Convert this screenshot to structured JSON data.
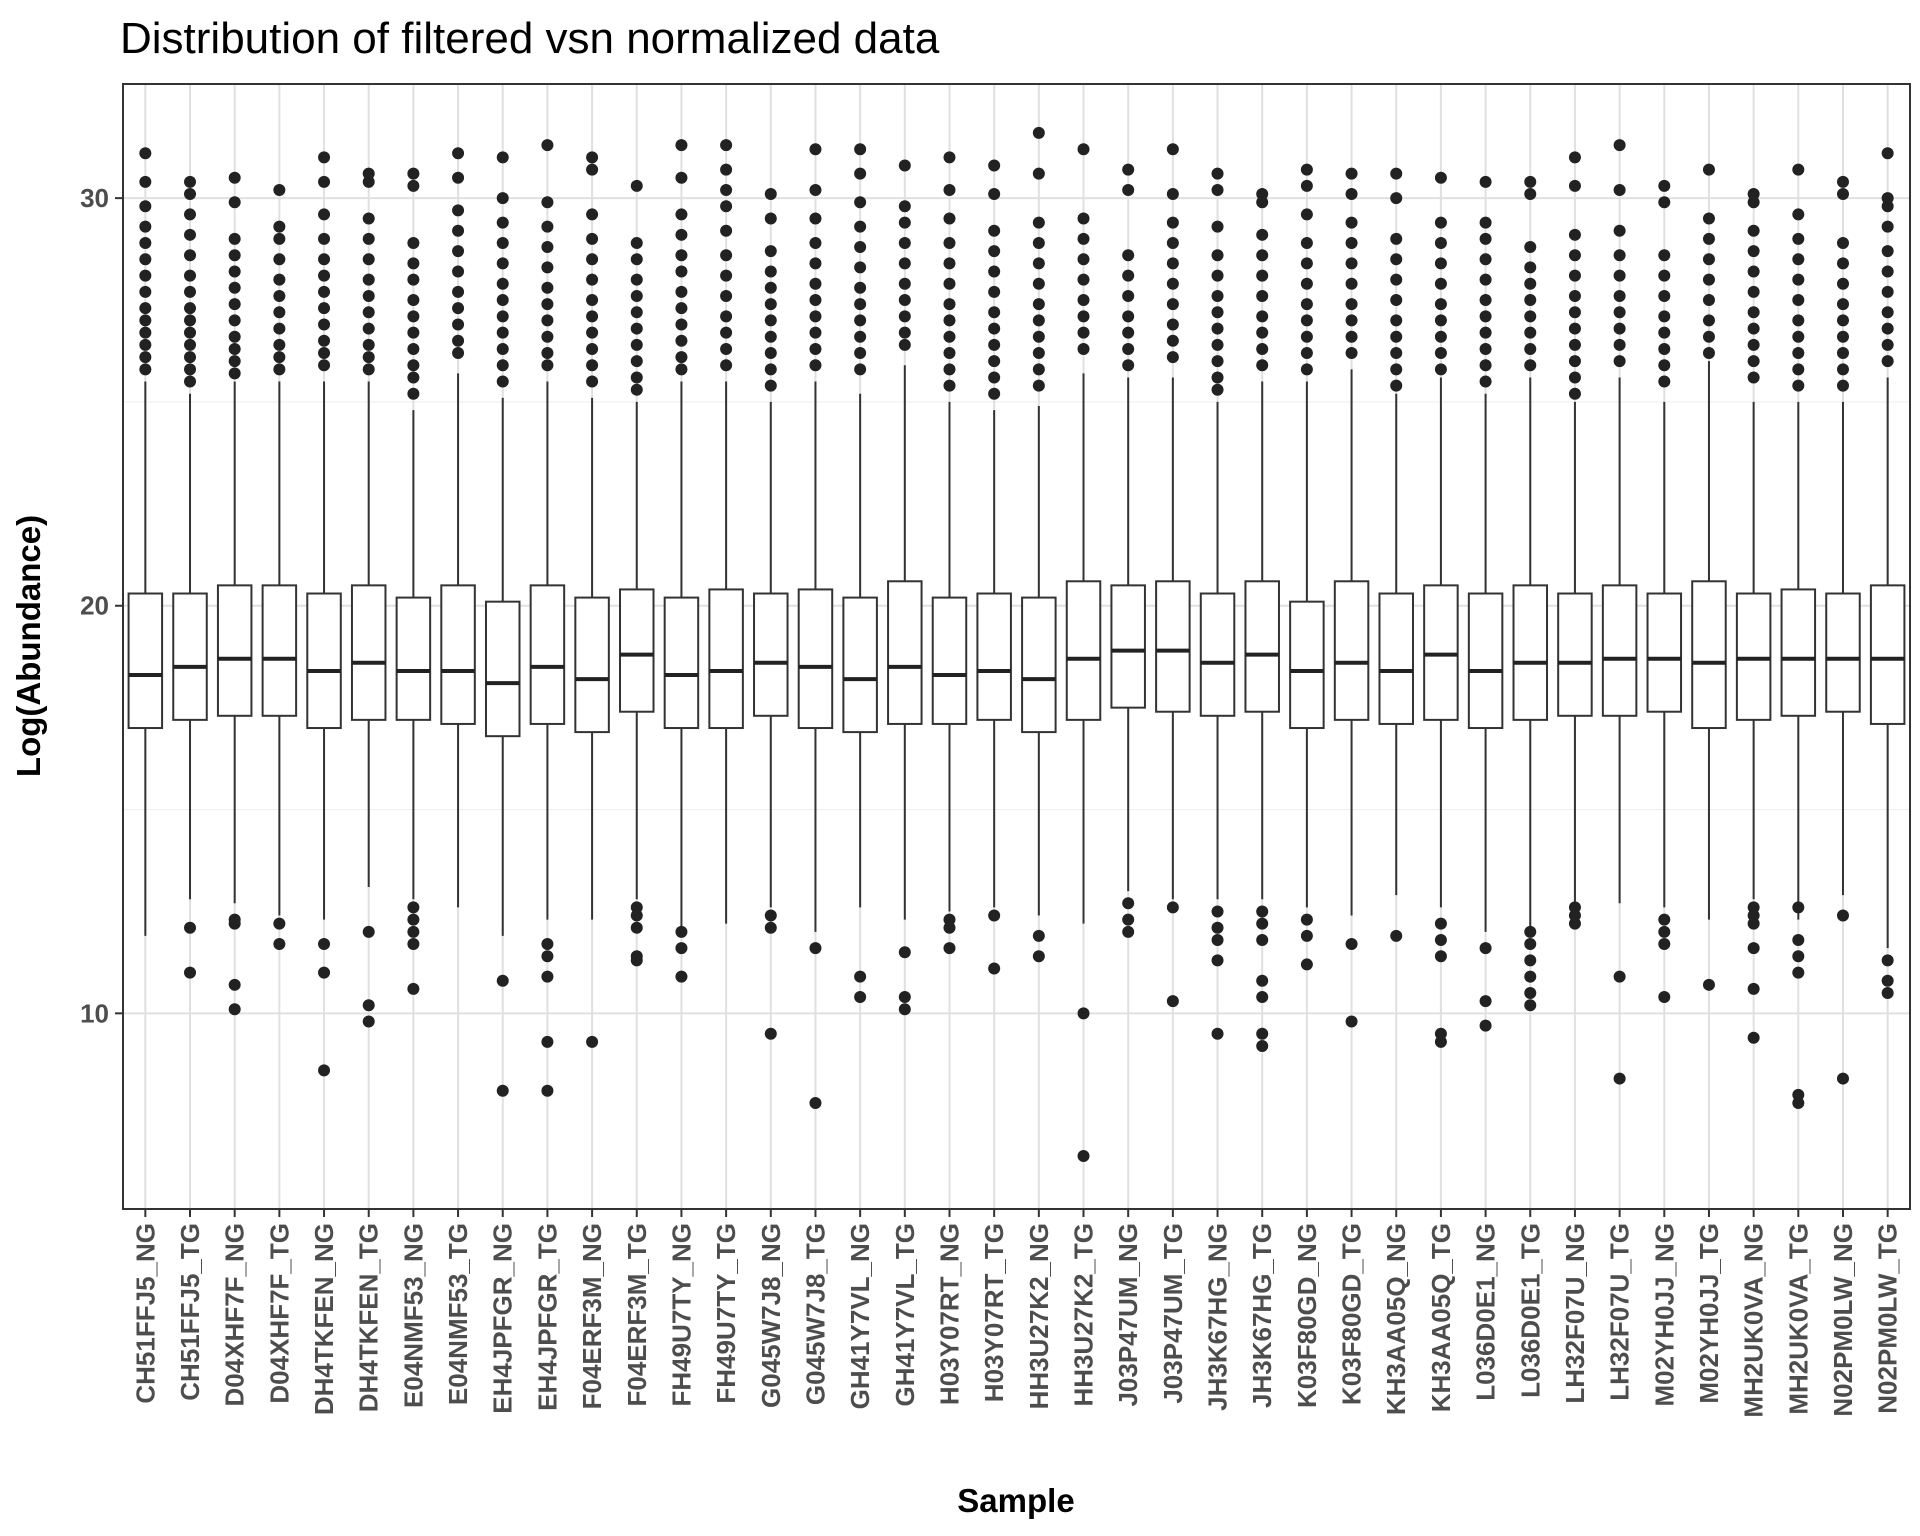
{
  "chart_data": {
    "type": "box",
    "title": "Distribution of filtered vsn normalized data",
    "xlabel": "Sample",
    "ylabel": "Log(Abundance)",
    "ylim": [
      5.2,
      32.8
    ],
    "yticks": [
      10,
      20,
      30
    ],
    "grid": true,
    "legend": "none",
    "colors": {
      "box_fill": "#ffffff",
      "box_line": "#333333",
      "point": "#222222",
      "grid_major": "#e0e0e0",
      "grid_minor": "#efefef",
      "panel_border": "#333333"
    },
    "categories": [
      "CH51FFJ5_NG",
      "CH51FFJ5_TG",
      "D04XHF7F_NG",
      "D04XHF7F_TG",
      "DH4TKFEN_NG",
      "DH4TKFEN_TG",
      "E04NMF53_NG",
      "E04NMF53_TG",
      "EH4JPFGR_NG",
      "EH4JPFGR_TG",
      "F04ERF3M_NG",
      "F04ERF3M_TG",
      "FH49U7TY_NG",
      "FH49U7TY_TG",
      "G045W7J8_NG",
      "G045W7J8_TG",
      "GH41Y7VL_NG",
      "GH41Y7VL_TG",
      "H03Y07RT_NG",
      "H03Y07RT_TG",
      "HH3U27K2_NG",
      "HH3U27K2_TG",
      "J03P47UM_NG",
      "J03P47UM_TG",
      "JH3K67HG_NG",
      "JH3K67HG_TG",
      "K03F80GD_NG",
      "K03F80GD_TG",
      "KH3AA05Q_NG",
      "KH3AA05Q_TG",
      "L036D0E1_NG",
      "L036D0E1_TG",
      "LH32F07U_NG",
      "LH32F07U_TG",
      "M02YH0JJ_NG",
      "M02YH0JJ_TG",
      "MH2UK0VA_NG",
      "MH2UK0VA_TG",
      "N02PM0LW_NG",
      "N02PM0LW_TG"
    ],
    "boxes": [
      {
        "lower_whisker": 11.9,
        "q1": 17.0,
        "median": 18.3,
        "q3": 20.3,
        "upper_whisker": 25.5
      },
      {
        "lower_whisker": 12.8,
        "q1": 17.2,
        "median": 18.5,
        "q3": 20.3,
        "upper_whisker": 25.2
      },
      {
        "lower_whisker": 12.7,
        "q1": 17.3,
        "median": 18.7,
        "q3": 20.5,
        "upper_whisker": 25.5
      },
      {
        "lower_whisker": 12.4,
        "q1": 17.3,
        "median": 18.7,
        "q3": 20.5,
        "upper_whisker": 25.5
      },
      {
        "lower_whisker": 12.3,
        "q1": 17.0,
        "median": 18.4,
        "q3": 20.3,
        "upper_whisker": 25.5
      },
      {
        "lower_whisker": 13.1,
        "q1": 17.2,
        "median": 18.6,
        "q3": 20.5,
        "upper_whisker": 25.5
      },
      {
        "lower_whisker": 12.8,
        "q1": 17.2,
        "median": 18.4,
        "q3": 20.2,
        "upper_whisker": 24.8
      },
      {
        "lower_whisker": 12.6,
        "q1": 17.1,
        "median": 18.4,
        "q3": 20.5,
        "upper_whisker": 25.7
      },
      {
        "lower_whisker": 11.9,
        "q1": 16.8,
        "median": 18.1,
        "q3": 20.1,
        "upper_whisker": 25.1
      },
      {
        "lower_whisker": 12.3,
        "q1": 17.1,
        "median": 18.5,
        "q3": 20.5,
        "upper_whisker": 25.5
      },
      {
        "lower_whisker": 12.3,
        "q1": 16.9,
        "median": 18.2,
        "q3": 20.2,
        "upper_whisker": 25.1
      },
      {
        "lower_whisker": 12.8,
        "q1": 17.4,
        "median": 18.8,
        "q3": 20.4,
        "upper_whisker": 25.0
      },
      {
        "lower_whisker": 12.1,
        "q1": 17.0,
        "median": 18.3,
        "q3": 20.2,
        "upper_whisker": 25.5
      },
      {
        "lower_whisker": 12.2,
        "q1": 17.0,
        "median": 18.4,
        "q3": 20.4,
        "upper_whisker": 25.5
      },
      {
        "lower_whisker": 12.6,
        "q1": 17.3,
        "median": 18.6,
        "q3": 20.3,
        "upper_whisker": 25.0
      },
      {
        "lower_whisker": 12.0,
        "q1": 17.0,
        "median": 18.5,
        "q3": 20.4,
        "upper_whisker": 25.5
      },
      {
        "lower_whisker": 12.6,
        "q1": 16.9,
        "median": 18.2,
        "q3": 20.2,
        "upper_whisker": 25.2
      },
      {
        "lower_whisker": 12.3,
        "q1": 17.1,
        "median": 18.5,
        "q3": 20.6,
        "upper_whisker": 25.9
      },
      {
        "lower_whisker": 12.5,
        "q1": 17.1,
        "median": 18.3,
        "q3": 20.2,
        "upper_whisker": 25.0
      },
      {
        "lower_whisker": 12.6,
        "q1": 17.2,
        "median": 18.4,
        "q3": 20.3,
        "upper_whisker": 24.8
      },
      {
        "lower_whisker": 12.4,
        "q1": 16.9,
        "median": 18.2,
        "q3": 20.2,
        "upper_whisker": 24.9
      },
      {
        "lower_whisker": 12.2,
        "q1": 17.2,
        "median": 18.7,
        "q3": 20.6,
        "upper_whisker": 25.7
      },
      {
        "lower_whisker": 13.0,
        "q1": 17.5,
        "median": 18.9,
        "q3": 20.5,
        "upper_whisker": 25.6
      },
      {
        "lower_whisker": 12.8,
        "q1": 17.4,
        "median": 18.9,
        "q3": 20.6,
        "upper_whisker": 25.6
      },
      {
        "lower_whisker": 12.8,
        "q1": 17.3,
        "median": 18.6,
        "q3": 20.3,
        "upper_whisker": 25.0
      },
      {
        "lower_whisker": 12.8,
        "q1": 17.4,
        "median": 18.8,
        "q3": 20.6,
        "upper_whisker": 25.5
      },
      {
        "lower_whisker": 12.6,
        "q1": 17.0,
        "median": 18.4,
        "q3": 20.1,
        "upper_whisker": 25.5
      },
      {
        "lower_whisker": 12.4,
        "q1": 17.2,
        "median": 18.6,
        "q3": 20.6,
        "upper_whisker": 25.8
      },
      {
        "lower_whisker": 12.9,
        "q1": 17.1,
        "median": 18.4,
        "q3": 20.3,
        "upper_whisker": 25.2
      },
      {
        "lower_whisker": 12.6,
        "q1": 17.2,
        "median": 18.8,
        "q3": 20.5,
        "upper_whisker": 25.6
      },
      {
        "lower_whisker": 12.0,
        "q1": 17.0,
        "median": 18.4,
        "q3": 20.3,
        "upper_whisker": 25.2
      },
      {
        "lower_whisker": 12.1,
        "q1": 17.2,
        "median": 18.6,
        "q3": 20.5,
        "upper_whisker": 25.6
      },
      {
        "lower_whisker": 12.7,
        "q1": 17.3,
        "median": 18.6,
        "q3": 20.3,
        "upper_whisker": 25.0
      },
      {
        "lower_whisker": 12.7,
        "q1": 17.3,
        "median": 18.7,
        "q3": 20.5,
        "upper_whisker": 25.6
      },
      {
        "lower_whisker": 12.6,
        "q1": 17.4,
        "median": 18.7,
        "q3": 20.3,
        "upper_whisker": 25.0
      },
      {
        "lower_whisker": 12.3,
        "q1": 17.0,
        "median": 18.6,
        "q3": 20.6,
        "upper_whisker": 26.0
      },
      {
        "lower_whisker": 12.8,
        "q1": 17.2,
        "median": 18.7,
        "q3": 20.3,
        "upper_whisker": 25.0
      },
      {
        "lower_whisker": 12.3,
        "q1": 17.3,
        "median": 18.7,
        "q3": 20.4,
        "upper_whisker": 25.0
      },
      {
        "lower_whisker": 12.9,
        "q1": 17.4,
        "median": 18.7,
        "q3": 20.3,
        "upper_whisker": 25.0
      },
      {
        "lower_whisker": 11.6,
        "q1": 17.1,
        "median": 18.7,
        "q3": 20.5,
        "upper_whisker": 25.6
      }
    ],
    "outliers_high": [
      [
        31.1,
        30.4,
        29.8,
        29.3,
        28.9,
        28.5,
        28.1,
        27.7,
        27.3,
        27.0,
        26.7,
        26.4,
        26.1,
        25.8
      ],
      [
        30.4,
        30.1,
        29.6,
        29.1,
        28.6,
        28.1,
        27.7,
        27.3,
        27.0,
        26.7,
        26.4,
        26.1,
        25.8,
        25.5
      ],
      [
        30.5,
        29.9,
        29.0,
        28.6,
        28.2,
        27.8,
        27.4,
        27.0,
        26.6,
        26.3,
        26.0,
        25.7
      ],
      [
        30.2,
        29.3,
        29.0,
        28.5,
        28.0,
        27.6,
        27.2,
        26.8,
        26.4,
        26.1,
        25.8
      ],
      [
        31.0,
        30.4,
        29.6,
        29.0,
        28.5,
        28.1,
        27.7,
        27.3,
        26.9,
        26.5,
        26.2,
        25.9
      ],
      [
        30.6,
        30.4,
        29.5,
        29.0,
        28.5,
        28.0,
        27.6,
        27.2,
        26.8,
        26.4,
        26.1,
        25.8
      ],
      [
        30.6,
        30.3,
        28.9,
        28.4,
        28.0,
        27.5,
        27.1,
        26.7,
        26.3,
        25.9,
        25.6,
        25.2
      ],
      [
        31.1,
        30.5,
        29.7,
        29.2,
        28.7,
        28.2,
        27.7,
        27.3,
        26.9,
        26.5,
        26.2
      ],
      [
        31.0,
        30.0,
        29.4,
        28.9,
        28.4,
        27.9,
        27.5,
        27.1,
        26.7,
        26.3,
        25.9,
        25.5
      ],
      [
        31.3,
        29.9,
        29.3,
        28.8,
        28.3,
        27.8,
        27.4,
        27.0,
        26.6,
        26.2,
        25.9
      ],
      [
        31.0,
        30.7,
        29.6,
        29.0,
        28.5,
        28.0,
        27.5,
        27.1,
        26.7,
        26.3,
        25.9,
        25.5
      ],
      [
        30.3,
        28.9,
        28.5,
        28.0,
        27.6,
        27.2,
        26.8,
        26.4,
        26.0,
        25.6,
        25.3
      ],
      [
        31.3,
        30.5,
        29.6,
        29.1,
        28.6,
        28.2,
        27.7,
        27.3,
        26.9,
        26.5,
        26.1,
        25.8
      ],
      [
        31.3,
        30.7,
        30.2,
        29.8,
        29.2,
        28.6,
        28.1,
        27.6,
        27.1,
        26.7,
        26.3,
        25.9
      ],
      [
        30.1,
        29.5,
        28.7,
        28.2,
        27.8,
        27.4,
        27.0,
        26.6,
        26.2,
        25.8,
        25.4
      ],
      [
        31.2,
        30.2,
        29.5,
        28.9,
        28.4,
        27.9,
        27.5,
        27.1,
        26.7,
        26.3,
        25.9
      ],
      [
        31.2,
        30.6,
        29.9,
        29.3,
        28.8,
        28.3,
        27.8,
        27.4,
        27.0,
        26.6,
        26.2,
        25.8
      ],
      [
        30.8,
        29.8,
        29.4,
        28.9,
        28.4,
        27.9,
        27.5,
        27.1,
        26.7,
        26.4
      ],
      [
        31.0,
        30.2,
        29.5,
        28.9,
        28.4,
        27.9,
        27.4,
        27.0,
        26.6,
        26.2,
        25.8,
        25.4
      ],
      [
        30.8,
        30.1,
        29.2,
        28.7,
        28.2,
        27.7,
        27.2,
        26.8,
        26.4,
        26.0,
        25.6,
        25.2
      ],
      [
        31.6,
        30.6,
        29.4,
        28.9,
        28.4,
        27.9,
        27.4,
        27.0,
        26.6,
        26.2,
        25.8,
        25.4
      ],
      [
        31.2,
        29.5,
        29.0,
        28.5,
        28.0,
        27.5,
        27.1,
        26.7,
        26.3
      ],
      [
        30.7,
        30.2,
        28.6,
        28.1,
        27.6,
        27.1,
        26.7,
        26.3,
        25.9
      ],
      [
        31.2,
        30.1,
        29.4,
        28.9,
        28.4,
        27.9,
        27.4,
        26.9,
        26.5,
        26.1
      ],
      [
        30.6,
        30.2,
        29.3,
        28.6,
        28.1,
        27.6,
        27.2,
        26.8,
        26.4,
        26.0,
        25.6,
        25.3
      ],
      [
        30.1,
        29.9,
        29.1,
        28.6,
        28.1,
        27.6,
        27.1,
        26.7,
        26.3,
        25.9
      ],
      [
        30.7,
        30.3,
        29.6,
        28.9,
        28.4,
        27.9,
        27.4,
        27.0,
        26.6,
        26.2,
        25.8
      ],
      [
        30.6,
        30.1,
        29.4,
        28.9,
        28.4,
        27.9,
        27.4,
        27.0,
        26.6,
        26.2
      ],
      [
        30.6,
        30.0,
        29.0,
        28.5,
        28.0,
        27.5,
        27.0,
        26.6,
        26.2,
        25.8,
        25.4
      ],
      [
        30.5,
        29.4,
        28.9,
        28.4,
        27.9,
        27.4,
        27.0,
        26.6,
        26.2,
        25.8
      ],
      [
        30.4,
        29.4,
        29.0,
        28.5,
        28.0,
        27.5,
        27.1,
        26.7,
        26.3,
        25.9,
        25.5
      ],
      [
        30.4,
        30.1,
        28.8,
        28.3,
        27.9,
        27.5,
        27.1,
        26.7,
        26.3,
        25.9
      ],
      [
        31.0,
        30.3,
        29.1,
        28.6,
        28.1,
        27.6,
        27.2,
        26.8,
        26.4,
        26.0,
        25.6,
        25.2
      ],
      [
        31.3,
        30.2,
        29.2,
        28.6,
        28.1,
        27.6,
        27.2,
        26.8,
        26.4,
        26.0
      ],
      [
        30.3,
        29.9,
        28.6,
        28.1,
        27.6,
        27.1,
        26.7,
        26.3,
        25.9,
        25.5
      ],
      [
        30.7,
        29.5,
        29.0,
        28.5,
        28.0,
        27.5,
        27.0,
        26.6,
        26.2
      ],
      [
        30.1,
        29.9,
        29.2,
        28.7,
        28.2,
        27.7,
        27.2,
        26.8,
        26.4,
        26.0,
        25.6
      ],
      [
        30.7,
        29.6,
        29.0,
        28.5,
        28.0,
        27.5,
        27.0,
        26.6,
        26.2,
        25.8,
        25.4
      ],
      [
        30.4,
        30.1,
        28.9,
        28.4,
        27.9,
        27.4,
        27.0,
        26.6,
        26.2,
        25.8,
        25.4
      ],
      [
        31.1,
        30.0,
        29.8,
        29.3,
        28.7,
        28.2,
        27.7,
        27.2,
        26.8,
        26.4,
        26.0
      ]
    ],
    "outliers_low": [
      [],
      [
        12.1,
        11.0
      ],
      [
        12.3,
        12.2,
        10.7,
        10.1
      ],
      [
        12.2,
        11.7
      ],
      [
        11.7,
        11.0,
        8.6
      ],
      [
        12.0,
        10.2,
        9.8
      ],
      [
        12.6,
        12.3,
        12.0,
        11.7,
        10.6
      ],
      [],
      [
        10.8,
        8.1
      ],
      [
        11.7,
        11.4,
        10.9,
        9.3,
        8.1
      ],
      [
        9.3
      ],
      [
        12.6,
        12.4,
        12.1,
        11.4,
        11.3
      ],
      [
        12.0,
        11.6,
        10.9
      ],
      [],
      [
        12.4,
        12.1,
        9.5
      ],
      [
        11.6,
        7.8
      ],
      [
        10.9,
        10.4
      ],
      [
        11.5,
        10.4,
        10.1
      ],
      [
        12.3,
        12.1,
        11.6
      ],
      [
        12.4,
        11.1
      ],
      [
        11.9,
        11.4
      ],
      [
        10.0,
        6.5
      ],
      [
        12.7,
        12.3,
        12.0
      ],
      [
        12.6,
        10.3
      ],
      [
        12.5,
        12.1,
        11.8,
        11.3,
        9.5
      ],
      [
        12.5,
        12.2,
        11.8,
        10.8,
        10.4,
        9.5,
        9.2
      ],
      [
        12.3,
        11.9,
        11.2
      ],
      [
        11.7,
        9.8
      ],
      [
        11.9
      ],
      [
        12.2,
        11.8,
        11.4,
        9.5,
        9.3
      ],
      [
        11.6,
        10.3,
        9.7
      ],
      [
        12.0,
        11.7,
        11.3,
        10.9,
        10.5,
        10.2
      ],
      [
        12.6,
        12.4,
        12.2
      ],
      [
        10.9,
        8.4
      ],
      [
        12.3,
        12.0,
        11.7,
        10.4
      ],
      [
        10.7
      ],
      [
        12.6,
        12.4,
        12.2,
        11.6,
        10.6,
        9.4
      ],
      [
        12.6,
        11.8,
        11.4,
        11.0,
        8.0,
        7.8
      ],
      [
        12.4,
        8.4
      ],
      [
        11.3,
        10.8,
        10.5
      ]
    ]
  }
}
